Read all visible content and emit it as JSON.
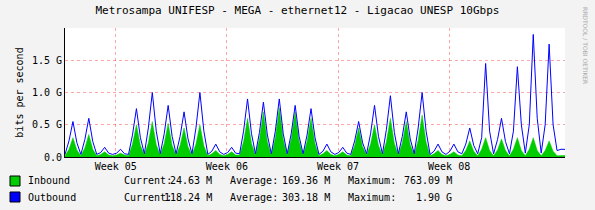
{
  "chart_data": {
    "type": "line",
    "title": "Metrosampa UNIFESP - MEGA - ethernet12 - Ligacao UNESP 10Gbps",
    "y_label": "bits per second",
    "watermark": "RRDTOOL / TOBI OETIKER",
    "xlim": [
      0,
      31.5
    ],
    "xticks": [
      {
        "value": 3.2,
        "label": "Week 05"
      },
      {
        "value": 10.2,
        "label": "Week 06"
      },
      {
        "value": 17.2,
        "label": "Week 07"
      },
      {
        "value": 24.2,
        "label": "Week 08"
      }
    ],
    "ylim": [
      0,
      2000000000.0
    ],
    "yticks": [
      {
        "value": 0,
        "label": "0.0"
      },
      {
        "value": 500000000.0,
        "label": "0.5 G"
      },
      {
        "value": 1000000000.0,
        "label": "1.0 G"
      },
      {
        "value": 1500000000.0,
        "label": "1.5 G"
      }
    ],
    "grid": true,
    "x": [
      0,
      0.25,
      0.5,
      0.75,
      1,
      1.25,
      1.5,
      1.75,
      2,
      2.25,
      2.5,
      2.75,
      3,
      3.25,
      3.5,
      3.75,
      4,
      4.25,
      4.5,
      4.75,
      5,
      5.25,
      5.5,
      5.75,
      6,
      6.25,
      6.5,
      6.75,
      7,
      7.25,
      7.5,
      7.75,
      8,
      8.25,
      8.5,
      8.75,
      9,
      9.25,
      9.5,
      9.75,
      10,
      10.25,
      10.5,
      10.75,
      11,
      11.25,
      11.5,
      11.75,
      12,
      12.25,
      12.5,
      12.75,
      13,
      13.25,
      13.5,
      13.75,
      14,
      14.25,
      14.5,
      14.75,
      15,
      15.25,
      15.5,
      15.75,
      16,
      16.25,
      16.5,
      16.75,
      17,
      17.25,
      17.5,
      17.75,
      18,
      18.25,
      18.5,
      18.75,
      19,
      19.25,
      19.5,
      19.75,
      20,
      20.25,
      20.5,
      20.75,
      21,
      21.25,
      21.5,
      21.75,
      22,
      22.25,
      22.5,
      22.75,
      23,
      23.25,
      23.5,
      23.75,
      24,
      24.25,
      24.5,
      24.75,
      25,
      25.25,
      25.5,
      25.75,
      26,
      26.25,
      26.5,
      26.75,
      27,
      27.25,
      27.5,
      27.75,
      28,
      28.25,
      28.5,
      28.75,
      29,
      29.25,
      29.5,
      29.75,
      30,
      30.25,
      30.5,
      30.75,
      31,
      31.25,
      31.5
    ],
    "series": [
      {
        "name": "Inbound",
        "type": "area",
        "color": "#00cc00",
        "stats": [
          {
            "label": "Current:",
            "value": "24.63 M"
          },
          {
            "label": "Average:",
            "value": "169.36 M"
          },
          {
            "label": "Maximum:",
            "value": "763.09 M"
          }
        ],
        "values": [
          20000000.0,
          120000000.0,
          300000000.0,
          110000000.0,
          20000000.0,
          140000000.0,
          350000000.0,
          120000000.0,
          20000000.0,
          40000000.0,
          80000000.0,
          30000000.0,
          20000000.0,
          30000000.0,
          60000000.0,
          30000000.0,
          20000000.0,
          200000000.0,
          500000000.0,
          180000000.0,
          30000000.0,
          220000000.0,
          550000000.0,
          190000000.0,
          30000000.0,
          210000000.0,
          520000000.0,
          180000000.0,
          30000000.0,
          180000000.0,
          450000000.0,
          160000000.0,
          30000000.0,
          200000000.0,
          500000000.0,
          170000000.0,
          20000000.0,
          50000000.0,
          100000000.0,
          40000000.0,
          20000000.0,
          40000000.0,
          80000000.0,
          30000000.0,
          30000000.0,
          240000000.0,
          600000000.0,
          210000000.0,
          30000000.0,
          280000000.0,
          700000000.0,
          240000000.0,
          30000000.0,
          300000000.0,
          763000000.0,
          270000000.0,
          30000000.0,
          280000000.0,
          700000000.0,
          250000000.0,
          30000000.0,
          240000000.0,
          600000000.0,
          210000000.0,
          20000000.0,
          50000000.0,
          100000000.0,
          40000000.0,
          20000000.0,
          40000000.0,
          80000000.0,
          30000000.0,
          20000000.0,
          180000000.0,
          450000000.0,
          160000000.0,
          30000000.0,
          200000000.0,
          500000000.0,
          180000000.0,
          30000000.0,
          240000000.0,
          600000000.0,
          210000000.0,
          30000000.0,
          220000000.0,
          550000000.0,
          190000000.0,
          30000000.0,
          260000000.0,
          650000000.0,
          230000000.0,
          20000000.0,
          50000000.0,
          100000000.0,
          40000000.0,
          20000000.0,
          40000000.0,
          80000000.0,
          30000000.0,
          20000000.0,
          100000000.0,
          250000000.0,
          90000000.0,
          20000000.0,
          120000000.0,
          300000000.0,
          100000000.0,
          20000000.0,
          110000000.0,
          280000000.0,
          100000000.0,
          20000000.0,
          120000000.0,
          300000000.0,
          100000000.0,
          20000000.0,
          120000000.0,
          300000000.0,
          100000000.0,
          20000000.0,
          100000000.0,
          250000000.0,
          90000000.0,
          20000000.0,
          25000000.0,
          24630000.0
        ]
      },
      {
        "name": "Outbound",
        "type": "line",
        "color": "#0000ff",
        "stats": [
          {
            "label": "Current:",
            "value": "118.24 M"
          },
          {
            "label": "Average:",
            "value": "303.18 M"
          },
          {
            "label": "Maximum:",
            "value": "1.90 G"
          }
        ],
        "values": [
          40000000.0,
          250000000.0,
          550000000.0,
          220000000.0,
          40000000.0,
          270000000.0,
          600000000.0,
          240000000.0,
          40000000.0,
          70000000.0,
          150000000.0,
          60000000.0,
          40000000.0,
          60000000.0,
          120000000.0,
          50000000.0,
          40000000.0,
          340000000.0,
          750000000.0,
          300000000.0,
          50000000.0,
          450000000.0,
          1000000000.0,
          400000000.0,
          50000000.0,
          360000000.0,
          800000000.0,
          320000000.0,
          50000000.0,
          320000000.0,
          700000000.0,
          280000000.0,
          50000000.0,
          450000000.0,
          1000000000.0,
          400000000.0,
          40000000.0,
          90000000.0,
          200000000.0,
          80000000.0,
          40000000.0,
          70000000.0,
          150000000.0,
          60000000.0,
          50000000.0,
          400000000.0,
          900000000.0,
          360000000.0,
          50000000.0,
          380000000.0,
          850000000.0,
          340000000.0,
          50000000.0,
          400000000.0,
          900000000.0,
          360000000.0,
          50000000.0,
          360000000.0,
          800000000.0,
          320000000.0,
          50000000.0,
          340000000.0,
          750000000.0,
          300000000.0,
          40000000.0,
          90000000.0,
          200000000.0,
          80000000.0,
          40000000.0,
          70000000.0,
          150000000.0,
          60000000.0,
          40000000.0,
          250000000.0,
          550000000.0,
          220000000.0,
          50000000.0,
          360000000.0,
          800000000.0,
          320000000.0,
          50000000.0,
          430000000.0,
          950000000.0,
          380000000.0,
          50000000.0,
          320000000.0,
          700000000.0,
          280000000.0,
          50000000.0,
          450000000.0,
          1000000000.0,
          400000000.0,
          40000000.0,
          90000000.0,
          200000000.0,
          80000000.0,
          40000000.0,
          90000000.0,
          200000000.0,
          80000000.0,
          50000000.0,
          200000000.0,
          450000000.0,
          180000000.0,
          50000000.0,
          300000000.0,
          1450000000.0,
          400000000.0,
          50000000.0,
          270000000.0,
          600000000.0,
          240000000.0,
          50000000.0,
          400000000.0,
          1400000000.0,
          500000000.0,
          60000000.0,
          500000000.0,
          1900000000.0,
          600000000.0,
          60000000.0,
          500000000.0,
          1750000000.0,
          500000000.0,
          100000000.0,
          120000000.0,
          118240000.0
        ]
      }
    ]
  }
}
